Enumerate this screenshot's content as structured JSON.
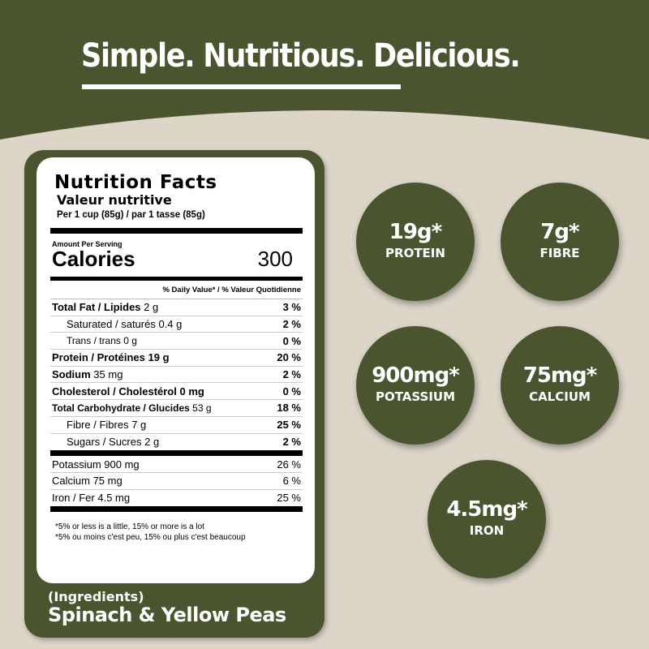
{
  "header": {
    "title": "Simple. Nutritious. Delicious."
  },
  "colors": {
    "olive": "#4a5530",
    "background": "#dcd5c8"
  },
  "label": {
    "title": "Nutrition Facts",
    "title_fr": "Valeur nutritive",
    "serving": "Per 1 cup (85g) / par 1 tasse (85g)",
    "amount_per_serving": "Amount Per Serving",
    "calories_label": "Calories",
    "calories": "300",
    "daily_value_header": "% Daily Value* / % Valeur Quotidienne",
    "rows": [
      {
        "name": "Total Fat / Lipides",
        "amount": "2 g",
        "dv": "3 %"
      },
      {
        "name": "Saturated / saturés",
        "amount": "0.4 g",
        "dv": "2 %"
      },
      {
        "name": "Trans / trans",
        "amount": "0 g",
        "dv": "0 %"
      },
      {
        "name": "Protein / Protéines",
        "amount": "19 g",
        "dv": "20 %"
      },
      {
        "name": "Sodium",
        "amount": "35 mg",
        "dv": "2 %"
      },
      {
        "name": "Cholesterol / Cholestérol",
        "amount": "0 mg",
        "dv": "0 %"
      },
      {
        "name": "Total Carbohydrate / Glucides",
        "amount": "53 g",
        "dv": "18 %"
      },
      {
        "name": "Fibre / Fibres",
        "amount": "7 g",
        "dv": "25 %"
      },
      {
        "name": "Sugars / Sucres",
        "amount": "2 g",
        "dv": "2 %"
      }
    ],
    "minerals": [
      {
        "name": "Potassium 900 mg",
        "dv": "26 %"
      },
      {
        "name": "Calcium  75 mg",
        "dv": "6 %"
      },
      {
        "name": "Iron / Fer 4.5 mg",
        "dv": "25 %"
      }
    ],
    "footnote_en": "*5% or less is a little, 15% or more is a lot",
    "footnote_fr": "*5% ou moins c'est peu, 15% ou plus c'est beaucoup"
  },
  "ingredients": {
    "heading": "(Ingredients)",
    "value": "Spinach & Yellow Peas"
  },
  "highlights": [
    {
      "value": "19g*",
      "name": "PROTEIN"
    },
    {
      "value": "7g*",
      "name": "FIBRE"
    },
    {
      "value": "900mg*",
      "name": "POTASSIUM"
    },
    {
      "value": "75mg*",
      "name": "CALCIUM"
    },
    {
      "value": "4.5mg*",
      "name": "IRON"
    }
  ]
}
